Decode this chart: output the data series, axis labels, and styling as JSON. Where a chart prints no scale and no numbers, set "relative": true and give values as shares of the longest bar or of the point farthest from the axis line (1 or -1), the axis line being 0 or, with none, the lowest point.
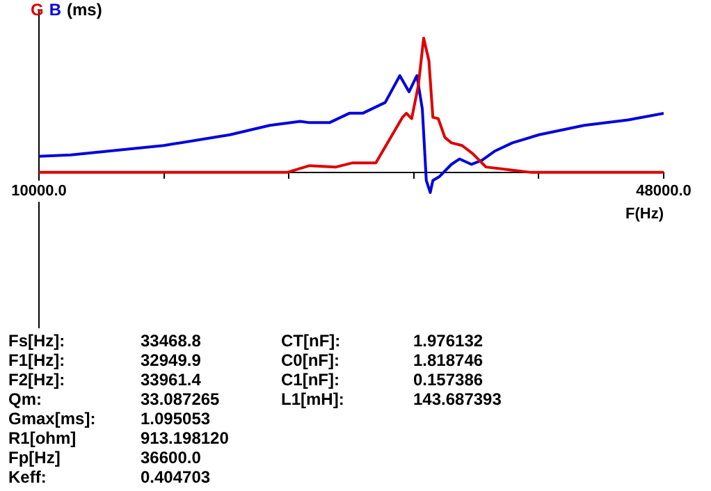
{
  "chart_data": {
    "type": "line",
    "relative": true,
    "ylabel": "(ms)",
    "xlabel": "F(Hz)",
    "legend": "top left",
    "grid": false,
    "marker": "none",
    "line_style": "solid",
    "xlim": [
      10000,
      48000
    ],
    "xticks": [
      {
        "value": 10000,
        "label": "10000.0"
      },
      {
        "value": 17600,
        "label": null
      },
      {
        "value": 25200,
        "label": null
      },
      {
        "value": 32800,
        "label": null
      },
      {
        "value": 40400,
        "label": null
      },
      {
        "value": 48000,
        "label": "48000.0"
      }
    ],
    "series": [
      {
        "name": "G",
        "color": "#dd0000",
        "x": [
          10000,
          25100,
          26460,
          28070,
          29040,
          30490,
          32110,
          32350,
          32670,
          33080,
          33400,
          33720,
          33960,
          34290,
          34690,
          35090,
          35740,
          36380,
          37190,
          38560,
          39930,
          48000
        ],
        "values": [
          0,
          0,
          0.05,
          0.04,
          0.07,
          0.07,
          0.41,
          0.44,
          0.4,
          0.65,
          1.0,
          0.83,
          0.41,
          0.4,
          0.26,
          0.22,
          0.2,
          0.14,
          0.04,
          0.02,
          0,
          0
        ]
      },
      {
        "name": "B",
        "color": "#0000dd",
        "x": [
          10000,
          11940,
          17580,
          21620,
          24040,
          25890,
          26460,
          27670,
          28880,
          29690,
          31060,
          31950,
          32510,
          32990,
          33320,
          33560,
          33800,
          33960,
          34370,
          35090,
          35580,
          36300,
          36950,
          37750,
          38800,
          40420,
          43160,
          45820,
          48000
        ],
        "values": [
          0.12,
          0.13,
          0.2,
          0.28,
          0.35,
          0.38,
          0.37,
          0.37,
          0.44,
          0.44,
          0.52,
          0.72,
          0.6,
          0.72,
          0.47,
          -0.06,
          -0.15,
          -0.06,
          -0.03,
          0.06,
          0.1,
          0.06,
          0.09,
          0.16,
          0.22,
          0.28,
          0.35,
          0.39,
          0.44
        ]
      }
    ],
    "annotations": [
      "Fs[Hz]:",
      "33468.8",
      "F1[Hz]:",
      "32949.9",
      "F2[Hz]:",
      "33961.4",
      "Qm:",
      "33.087265",
      "Gmax[ms]:",
      "1.095053",
      "R1[ohm]",
      "913.198120",
      "Fp[Hz]",
      "36600.0",
      "Keff:",
      "0.404703",
      "CT[nF]:",
      "1.976132",
      "C0[nF]:",
      "1.818746",
      "C1[nF]:",
      "0.157386",
      "L1[mH]:",
      "143.687393"
    ]
  }
}
